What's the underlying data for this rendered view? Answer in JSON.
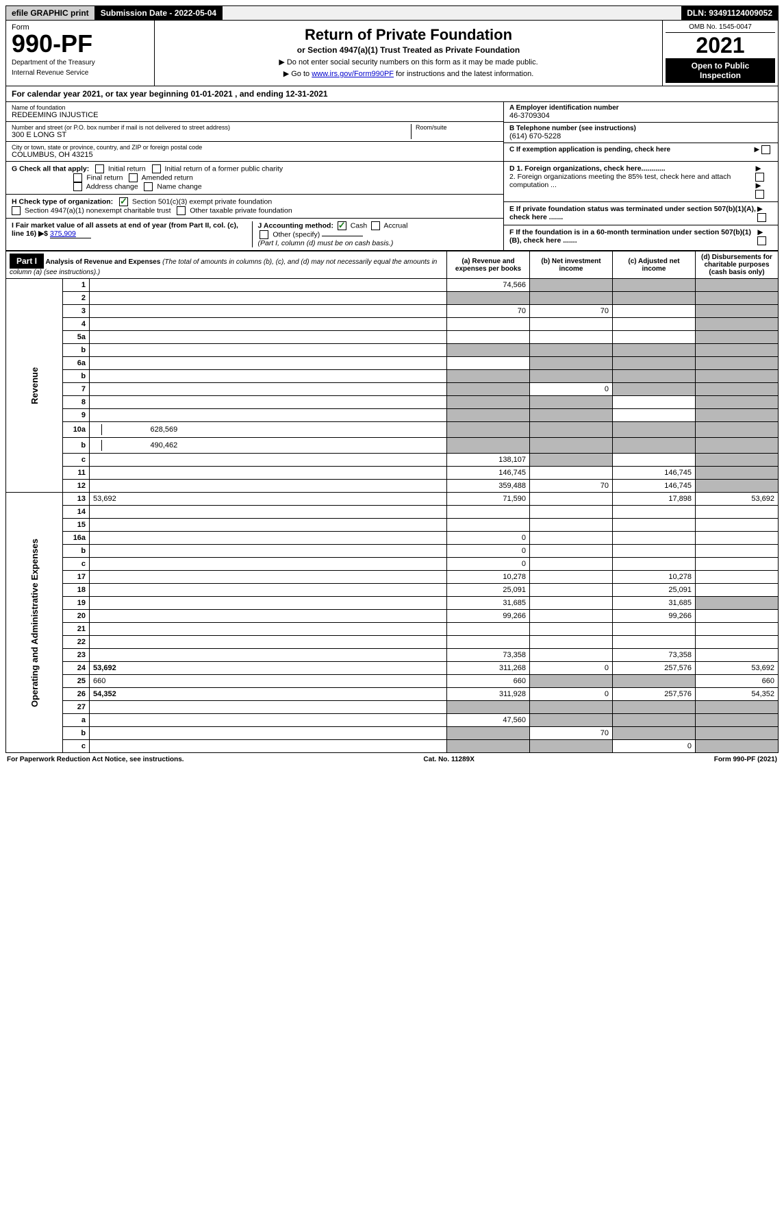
{
  "top": {
    "efile": "efile GRAPHIC print",
    "submission_label": "Submission Date - 2022-05-04",
    "dln": "DLN: 93491124009052"
  },
  "header": {
    "form_word": "Form",
    "form_number": "990-PF",
    "dept1": "Department of the Treasury",
    "dept2": "Internal Revenue Service",
    "title": "Return of Private Foundation",
    "subtitle": "or Section 4947(a)(1) Trust Treated as Private Foundation",
    "instr1": "▶ Do not enter social security numbers on this form as it may be made public.",
    "instr2_pre": "▶ Go to ",
    "instr2_link": "www.irs.gov/Form990PF",
    "instr2_post": " for instructions and the latest information.",
    "omb": "OMB No. 1545-0047",
    "year": "2021",
    "open1": "Open to Public",
    "open2": "Inspection"
  },
  "calyear": "For calendar year 2021, or tax year beginning 01-01-2021           , and ending 12-31-2021",
  "entity": {
    "name_label": "Name of foundation",
    "name": "REDEEMING INJUSTICE",
    "addr_label": "Number and street (or P.O. box number if mail is not delivered to street address)",
    "room_label": "Room/suite",
    "addr": "300 E LONG ST",
    "city_label": "City or town, state or province, country, and ZIP or foreign postal code",
    "city": "COLUMBUS, OH  43215",
    "a_label": "A Employer identification number",
    "a_val": "46-3709304",
    "b_label": "B Telephone number (see instructions)",
    "b_val": "(614) 670-5228",
    "c_label": "C If exemption application is pending, check here"
  },
  "checks": {
    "g_label": "G Check all that apply:",
    "g1": "Initial return",
    "g2": "Initial return of a former public charity",
    "g3": "Final return",
    "g4": "Amended return",
    "g5": "Address change",
    "g6": "Name change",
    "h_label": "H Check type of organization:",
    "h1": "Section 501(c)(3) exempt private foundation",
    "h2": "Section 4947(a)(1) nonexempt charitable trust",
    "h3": "Other taxable private foundation",
    "i_label": "I Fair market value of all assets at end of year (from Part II, col. (c), line 16) ▶$",
    "i_val": "375,909",
    "j_label": "J Accounting method:",
    "j1": "Cash",
    "j2": "Accrual",
    "j3": "Other (specify)",
    "j_note": "(Part I, column (d) must be on cash basis.)",
    "d1": "D 1. Foreign organizations, check here............",
    "d2": "2. Foreign organizations meeting the 85% test, check here and attach computation ...",
    "e": "E  If private foundation status was terminated under section 507(b)(1)(A), check here .......",
    "f": "F  If the foundation is in a 60-month termination under section 507(b)(1)(B), check here .......",
    "arrow": "▶"
  },
  "part1": {
    "label": "Part I",
    "title": "Analysis of Revenue and Expenses",
    "note": "(The total of amounts in columns (b), (c), and (d) may not necessarily equal the amounts in column (a) (see instructions).)",
    "col_a": "(a) Revenue and expenses per books",
    "col_b": "(b) Net investment income",
    "col_c": "(c) Adjusted net income",
    "col_d": "(d) Disbursements for charitable purposes (cash basis only)"
  },
  "side": {
    "revenue": "Revenue",
    "expenses": "Operating and Administrative Expenses"
  },
  "rows": [
    {
      "n": "1",
      "d": "",
      "a": "74,566",
      "b": "",
      "c": "",
      "b_sh": true,
      "c_sh": true,
      "d_sh": true
    },
    {
      "n": "2",
      "d": "",
      "a": "",
      "b": "",
      "c": "",
      "a_sh": true,
      "b_sh": true,
      "c_sh": true,
      "d_sh": true
    },
    {
      "n": "3",
      "d": "",
      "a": "70",
      "b": "70",
      "c": "",
      "d_sh": true
    },
    {
      "n": "4",
      "d": "",
      "a": "",
      "b": "",
      "c": "",
      "d_sh": true
    },
    {
      "n": "5a",
      "d": "",
      "a": "",
      "b": "",
      "c": "",
      "d_sh": true
    },
    {
      "n": "b",
      "d": "",
      "a": "",
      "b": "",
      "c": "",
      "a_sh": true,
      "b_sh": true,
      "c_sh": true,
      "d_sh": true
    },
    {
      "n": "6a",
      "d": "",
      "a": "",
      "b": "",
      "c": "",
      "b_sh": true,
      "c_sh": true,
      "d_sh": true
    },
    {
      "n": "b",
      "d": "",
      "a": "",
      "b": "",
      "c": "",
      "a_sh": true,
      "b_sh": true,
      "c_sh": true,
      "d_sh": true
    },
    {
      "n": "7",
      "d": "",
      "a": "",
      "b": "0",
      "c": "",
      "a_sh": true,
      "c_sh": true,
      "d_sh": true
    },
    {
      "n": "8",
      "d": "",
      "a": "",
      "b": "",
      "c": "",
      "a_sh": true,
      "b_sh": true,
      "d_sh": true
    },
    {
      "n": "9",
      "d": "",
      "a": "",
      "b": "",
      "c": "",
      "a_sh": true,
      "b_sh": true,
      "d_sh": true
    },
    {
      "n": "10a",
      "d": "",
      "a": "",
      "b": "",
      "c": "",
      "v": "628,569",
      "a_sh": true,
      "b_sh": true,
      "c_sh": true,
      "d_sh": true
    },
    {
      "n": "b",
      "d": "",
      "a": "",
      "b": "",
      "c": "",
      "v": "490,462",
      "a_sh": true,
      "b_sh": true,
      "c_sh": true,
      "d_sh": true
    },
    {
      "n": "c",
      "d": "",
      "a": "138,107",
      "b": "",
      "c": "",
      "b_sh": true,
      "d_sh": true
    },
    {
      "n": "11",
      "d": "",
      "a": "146,745",
      "b": "",
      "c": "146,745",
      "d_sh": true
    },
    {
      "n": "12",
      "d": "",
      "a": "359,488",
      "b": "70",
      "c": "146,745",
      "bold": true,
      "d_sh": true
    },
    {
      "n": "13",
      "d": "53,692",
      "a": "71,590",
      "b": "",
      "c": "17,898"
    },
    {
      "n": "14",
      "d": "",
      "a": "",
      "b": "",
      "c": ""
    },
    {
      "n": "15",
      "d": "",
      "a": "",
      "b": "",
      "c": ""
    },
    {
      "n": "16a",
      "d": "",
      "a": "0",
      "b": "",
      "c": ""
    },
    {
      "n": "b",
      "d": "",
      "a": "0",
      "b": "",
      "c": ""
    },
    {
      "n": "c",
      "d": "",
      "a": "0",
      "b": "",
      "c": ""
    },
    {
      "n": "17",
      "d": "",
      "a": "10,278",
      "b": "",
      "c": "10,278"
    },
    {
      "n": "18",
      "d": "",
      "a": "25,091",
      "b": "",
      "c": "25,091"
    },
    {
      "n": "19",
      "d": "",
      "a": "31,685",
      "b": "",
      "c": "31,685",
      "d_sh": true
    },
    {
      "n": "20",
      "d": "",
      "a": "99,266",
      "b": "",
      "c": "99,266"
    },
    {
      "n": "21",
      "d": "",
      "a": "",
      "b": "",
      "c": ""
    },
    {
      "n": "22",
      "d": "",
      "a": "",
      "b": "",
      "c": ""
    },
    {
      "n": "23",
      "d": "",
      "a": "73,358",
      "b": "",
      "c": "73,358"
    },
    {
      "n": "24",
      "d": "53,692",
      "a": "311,268",
      "b": "0",
      "c": "257,576",
      "bold": true
    },
    {
      "n": "25",
      "d": "660",
      "a": "660",
      "b": "",
      "c": "",
      "b_sh": true,
      "c_sh": true
    },
    {
      "n": "26",
      "d": "54,352",
      "a": "311,928",
      "b": "0",
      "c": "257,576",
      "bold": true
    },
    {
      "n": "27",
      "d": "",
      "a": "",
      "b": "",
      "c": "",
      "a_sh": true,
      "b_sh": true,
      "c_sh": true,
      "d_sh": true
    },
    {
      "n": "a",
      "d": "",
      "a": "47,560",
      "b": "",
      "c": "",
      "bold": true,
      "b_sh": true,
      "c_sh": true,
      "d_sh": true
    },
    {
      "n": "b",
      "d": "",
      "a": "",
      "b": "70",
      "c": "",
      "bold": true,
      "a_sh": true,
      "c_sh": true,
      "d_sh": true
    },
    {
      "n": "c",
      "d": "",
      "a": "",
      "b": "",
      "c": "0",
      "bold": true,
      "a_sh": true,
      "b_sh": true,
      "d_sh": true
    }
  ],
  "footer": {
    "left": "For Paperwork Reduction Act Notice, see instructions.",
    "mid": "Cat. No. 11289X",
    "right": "Form 990-PF (2021)"
  }
}
